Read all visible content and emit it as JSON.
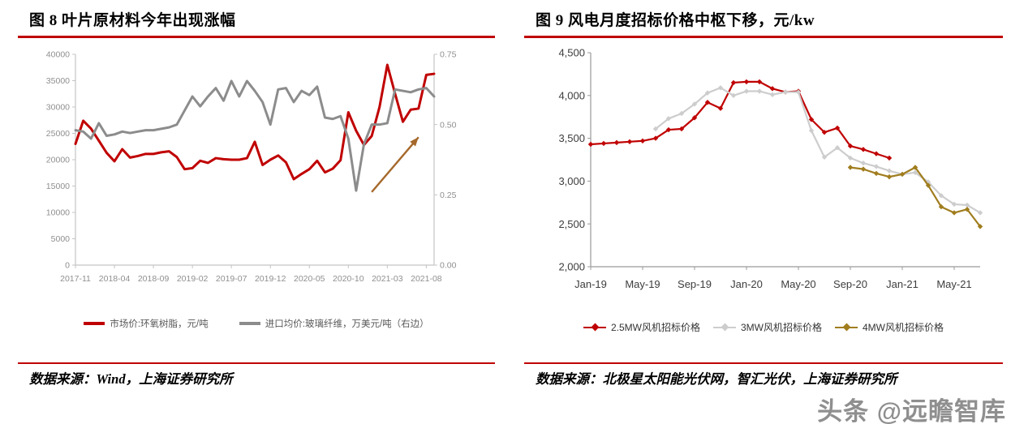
{
  "figures": [
    {
      "source_label": "数据来源：Wind，上海证券研究所"
    },
    {
      "source_label": "数据来源：北极星太阳能光伏网，智汇光伏，上海证券研究所"
    }
  ],
  "watermark": "头条 @远瞻智库",
  "accent_color": "#C00000",
  "chart_data": [
    {
      "type": "line",
      "title": "图 8 叶片原材料今年出现涨幅",
      "legend_position": "bottom",
      "grid": false,
      "x": [
        "2017-11",
        "2017-12",
        "2018-01",
        "2018-02",
        "2018-03",
        "2018-04",
        "2018-05",
        "2018-06",
        "2018-07",
        "2018-08",
        "2018-09",
        "2018-10",
        "2018-11",
        "2018-12",
        "2019-01",
        "2019-02",
        "2019-03",
        "2019-04",
        "2019-05",
        "2019-06",
        "2019-07",
        "2019-08",
        "2019-09",
        "2019-10",
        "2019-11",
        "2019-12",
        "2020-01",
        "2020-02",
        "2020-03",
        "2020-04",
        "2020-05",
        "2020-06",
        "2020-07",
        "2020-08",
        "2020-09",
        "2020-10",
        "2020-11",
        "2020-12",
        "2021-01",
        "2021-02",
        "2021-03",
        "2021-04",
        "2021-05",
        "2021-06",
        "2021-07",
        "2021-08",
        "2021-09"
      ],
      "x_ticks": [
        0,
        5,
        10,
        15,
        20,
        25,
        30,
        35,
        40,
        45
      ],
      "left_axis": {
        "min": 0,
        "max": 40000,
        "tick_values": [
          0,
          5000,
          10000,
          15000,
          20000,
          25000,
          30000,
          35000,
          40000
        ],
        "tick_labels": [
          "0",
          "5000",
          "10000",
          "15000",
          "20000",
          "25000",
          "30000",
          "35000",
          "40000"
        ]
      },
      "right_axis": {
        "min": 0,
        "max": 0.75,
        "tick_values": [
          0,
          0.25,
          0.5,
          0.75
        ],
        "tick_labels": [
          "0.00",
          "0.25",
          "0.50",
          "0.75"
        ]
      },
      "series": [
        {
          "name": "市场价:环氧树脂，元/吨",
          "color": "#C00000",
          "axis": "left",
          "values": [
            23000,
            27400,
            25900,
            23600,
            21300,
            19700,
            22000,
            20400,
            20700,
            21100,
            21100,
            21400,
            21600,
            20500,
            18200,
            18400,
            19800,
            19400,
            20300,
            20100,
            20000,
            20000,
            20300,
            23400,
            19000,
            20000,
            20800,
            19500,
            16300,
            17300,
            18200,
            19800,
            17600,
            18300,
            19900,
            29000,
            25500,
            22800,
            24500,
            30000,
            38000,
            32500,
            27200,
            29500,
            29700,
            36100,
            36300
          ]
        },
        {
          "name": "进口均价:玻璃纤维，万美元/吨（右边）",
          "color": "#8C8C8C",
          "axis": "right",
          "values": [
            0.48,
            0.475,
            0.45,
            0.505,
            0.46,
            0.465,
            0.475,
            0.47,
            0.475,
            0.48,
            0.48,
            0.485,
            0.49,
            0.5,
            0.55,
            0.6,
            0.565,
            0.6,
            0.63,
            0.585,
            0.655,
            0.6,
            0.655,
            0.62,
            0.58,
            0.5,
            0.625,
            0.63,
            0.58,
            0.62,
            0.605,
            0.635,
            0.525,
            0.52,
            0.53,
            0.45,
            0.265,
            0.43,
            0.5,
            0.5,
            0.505,
            0.625,
            0.62,
            0.615,
            0.625,
            0.63,
            0.6
          ]
        }
      ],
      "arrow": {
        "color": "#A5682A",
        "value_axis": "right",
        "from_index": 38,
        "from_value": 0.26,
        "to_index": 44,
        "to_value": 0.455
      }
    },
    {
      "type": "line",
      "title": "图 9 风电月度招标价格中枢下移，元/kw",
      "legend_position": "bottom",
      "grid": false,
      "x": [
        "Jan-19",
        "Feb-19",
        "Mar-19",
        "Apr-19",
        "May-19",
        "Jun-19",
        "Jul-19",
        "Aug-19",
        "Sep-19",
        "Oct-19",
        "Nov-19",
        "Dec-19",
        "Jan-20",
        "Feb-20",
        "Mar-20",
        "Apr-20",
        "May-20",
        "Jun-20",
        "Jul-20",
        "Aug-20",
        "Sep-20",
        "Oct-20",
        "Nov-20",
        "Dec-20",
        "Jan-21",
        "Feb-21",
        "Mar-21",
        "Apr-21",
        "May-21",
        "Jun-21",
        "Jul-21"
      ],
      "x_ticks": [
        0,
        4,
        8,
        12,
        16,
        20,
        24,
        28
      ],
      "left_axis": {
        "min": 2000,
        "max": 4500,
        "tick_values": [
          2000,
          2500,
          3000,
          3500,
          4000,
          4500
        ],
        "tick_labels": [
          "2,000",
          "2,500",
          "3,000",
          "3,500",
          "4,000",
          "4,500"
        ]
      },
      "series": [
        {
          "name": "2.5MW风机招标价格",
          "color": "#C00000",
          "axis": "left",
          "marker": "diamond",
          "values": [
            3430,
            3440,
            3450,
            3460,
            3470,
            3500,
            3600,
            3610,
            3740,
            3920,
            3850,
            4150,
            4160,
            4160,
            4080,
            4040,
            4050,
            3720,
            3570,
            3620,
            3410,
            3370,
            3320,
            3270,
            null,
            null,
            null,
            null,
            null,
            null,
            null
          ]
        },
        {
          "name": "3MW风机招标价格",
          "color": "#CDCDCD",
          "axis": "left",
          "marker": "diamond",
          "values": [
            null,
            null,
            null,
            null,
            null,
            3610,
            3730,
            3790,
            3900,
            4030,
            4090,
            4000,
            4050,
            4050,
            4010,
            4040,
            4040,
            3590,
            3280,
            3390,
            3270,
            3210,
            3170,
            3120,
            3080,
            3100,
            2990,
            2830,
            2730,
            2720,
            2630
          ]
        },
        {
          "name": "4MW风机招标价格",
          "color": "#A07D1E",
          "axis": "left",
          "marker": "diamond",
          "values": [
            null,
            null,
            null,
            null,
            null,
            null,
            null,
            null,
            null,
            null,
            null,
            null,
            null,
            null,
            null,
            null,
            null,
            null,
            null,
            null,
            3160,
            3140,
            3090,
            3050,
            3080,
            3160,
            2950,
            2700,
            2630,
            2670,
            2470
          ]
        }
      ]
    }
  ]
}
